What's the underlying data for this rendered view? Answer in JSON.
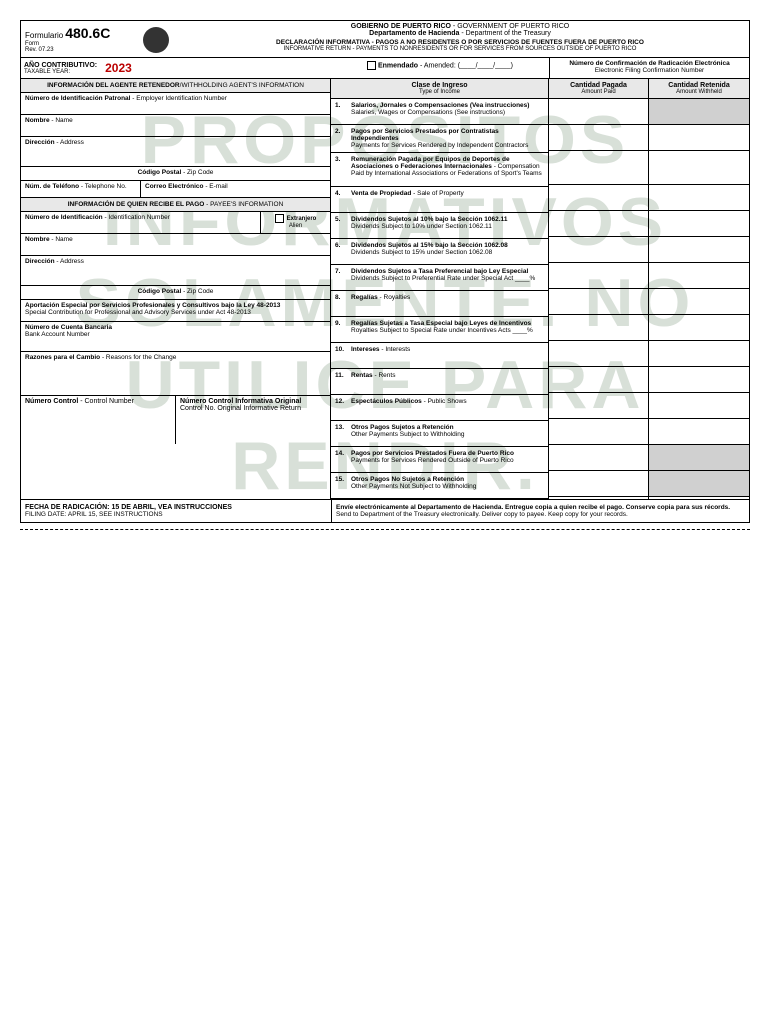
{
  "watermark": "PROPÓSITOS INFORMATIVOS SOLAMENTE. NO UTILICE PARA RENDIR.",
  "header": {
    "formulario": "Formulario",
    "formnum": "480.6C",
    "form_lbl": "Form",
    "rev": "Rev. 07.23",
    "gov_es": "GOBIERNO DE PUERTO RICO",
    "gov_en": " - GOVERNMENT OF PUERTO RICO",
    "dept_es": "Departamento de Hacienda",
    "dept_en": " - Department of the Treasury",
    "decl_es": "DECLARACIÓN INFORMATIVA - PAGOS A NO RESIDENTES O POR SERVICIOS DE FUENTES FUERA DE PUERTO RICO",
    "decl_en": "INFORMATIVE RETURN - PAYMENTS TO NONRESIDENTS OR FOR SERVICES FROM SOURCES OUTSIDE OF PUERTO RICO"
  },
  "year": {
    "lbl_es": "AÑO CONTRIBUTIVO:",
    "lbl_en": "TAXABLE YEAR:",
    "val": "2023",
    "amended_es": "Enmendado",
    "amended_en": " - Amended: (____/____/____)",
    "conf_es": "Número de Confirmación de Radicación Electrónica",
    "conf_en": "Electronic Filing Confirmation Number"
  },
  "agent": {
    "hdr_es": "INFORMACIÓN DEL AGENTE RETENEDOR",
    "hdr_en": "/WITHHOLDING AGENT'S INFORMATION",
    "ein_es": "Número de Identificación Patronal",
    "ein_en": " - Employer Identification Number",
    "name_es": "Nombre",
    "name_en": " - Name",
    "addr_es": "Dirección",
    "addr_en": " - Address",
    "zip_es": "Código Postal",
    "zip_en": " - Zip Code",
    "tel_es": "Núm. de Teléfono",
    "tel_en": " - Telephone No.",
    "email_es": "Correo Electrónico",
    "email_en": " - E-mail"
  },
  "payee": {
    "hdr_es": "INFORMACIÓN DE QUIEN RECIBE EL PAGO",
    "hdr_en": " - PAYEE'S INFORMATION",
    "id_es": "Número de Identificación",
    "id_en": " - Identification Number",
    "alien_es": "Extranjero",
    "alien_en": "Alien",
    "name_es": "Nombre",
    "name_en": " - Name",
    "addr_es": "Dirección",
    "addr_en": " - Address",
    "zip_es": "Código Postal",
    "zip_en": " - Zip Code",
    "contrib_es": "Aportación Especial por Servicios Profesionales y Consultivos bajo la Ley 48-2013",
    "contrib_en": "Special Contribution for Professional and Advisory Services under Act 48-2013",
    "bank_es": "Número de Cuenta Bancaria",
    "bank_en": "Bank Account Number",
    "reasons_es": "Razones para el Cambio",
    "reasons_en": " - Reasons for the Change",
    "ctrl_es": "Número Control",
    "ctrl_en": " - Control Number",
    "ctrl_orig_es": "Número Control Informativa Original",
    "ctrl_orig_en": "Control No. Original Informative Return"
  },
  "cols": {
    "income_es": "Clase de Ingreso",
    "income_en": "Type of Income",
    "paid_es": "Cantidad Pagada",
    "paid_en": "Amount Paid",
    "withheld_es": "Cantidad Retenida",
    "withheld_en": "Amount Withheld"
  },
  "rows": [
    {
      "n": "1.",
      "es": "Salarios, Jornales o Compensaciones (Vea instrucciones)",
      "en": "Salaries, Wages or Compensations (See instructions)",
      "gray": true
    },
    {
      "n": "2.",
      "es": "Pagos por Servicios Prestados por Contratistas Independientes",
      "en": "Payments for Services Rendered by Independent Contractors",
      "gray": false
    },
    {
      "n": "3.",
      "es": "Remuneración Pagada por Equipos de Deportes de Asociaciones o Federaciones Internacionales",
      "en": " - Compensation Paid by International Associations or Federations of Sport's Teams",
      "gray": false,
      "inline": true
    },
    {
      "n": "4.",
      "es": "Venta de Propiedad",
      "en": " - Sale of Property",
      "gray": false,
      "inline": true
    },
    {
      "n": "5.",
      "es": "Dividendos Sujetos al 10% bajo la Sección 1062.11",
      "en": "Dividends Subject to 10% under Section 1062.11",
      "gray": false
    },
    {
      "n": "6.",
      "es": "Dividendos Sujetos al 15% bajo la Sección 1062.08",
      "en": "Dividends Subject to 15% under Section 1062.08",
      "gray": false
    },
    {
      "n": "7.",
      "es": "Dividendos Sujetos a Tasa Preferencial bajo Ley Especial",
      "en": "Dividends Subject to Preferential Rate under Special Act ____%",
      "gray": false
    },
    {
      "n": "8.",
      "es": "Regalías",
      "en": " - Royalties",
      "gray": false,
      "inline": true
    },
    {
      "n": "9.",
      "es": "Regalías Sujetas a Tasa Especial bajo Leyes de Incentivos",
      "en": "Royalties Subject to Special Rate under Incentives Acts ____%",
      "gray": false
    },
    {
      "n": "10.",
      "es": "Intereses",
      "en": " - Interests",
      "gray": false,
      "inline": true
    },
    {
      "n": "11.",
      "es": "Rentas",
      "en": " - Rents",
      "gray": false,
      "inline": true
    },
    {
      "n": "12.",
      "es": "Espectáculos Públicos",
      "en": " - Public Shows",
      "gray": false,
      "inline": true
    },
    {
      "n": "13.",
      "es": "Otros Pagos Sujetos a Retención",
      "en": "Other Payments Subject to Withholding",
      "gray": false
    },
    {
      "n": "14.",
      "es": "Pagos por Servicios Prestados Fuera de Puerto Rico",
      "en": "Payments for Services Rendered Outside of Puerto Rico",
      "gray": true
    },
    {
      "n": "15.",
      "es": "Otros Pagos No Sujetos a Retención",
      "en": "Other Payments Not Subject to Withholding",
      "gray": true
    }
  ],
  "footer": {
    "date_es": "FECHA DE RADICACIÓN: 15 DE ABRIL, VEA INSTRUCCIONES",
    "date_en": "FILING DATE: APRIL 15, SEE INSTRUCTIONS",
    "send_es": "Envíe electrónicamente al Departamento de Hacienda. Entregue copia a quien recibe el pago. Conserve copia para sus récords.",
    "send_en": "Send to Department of the Treasury electronically. Deliver copy to payee. Keep copy for your records."
  }
}
